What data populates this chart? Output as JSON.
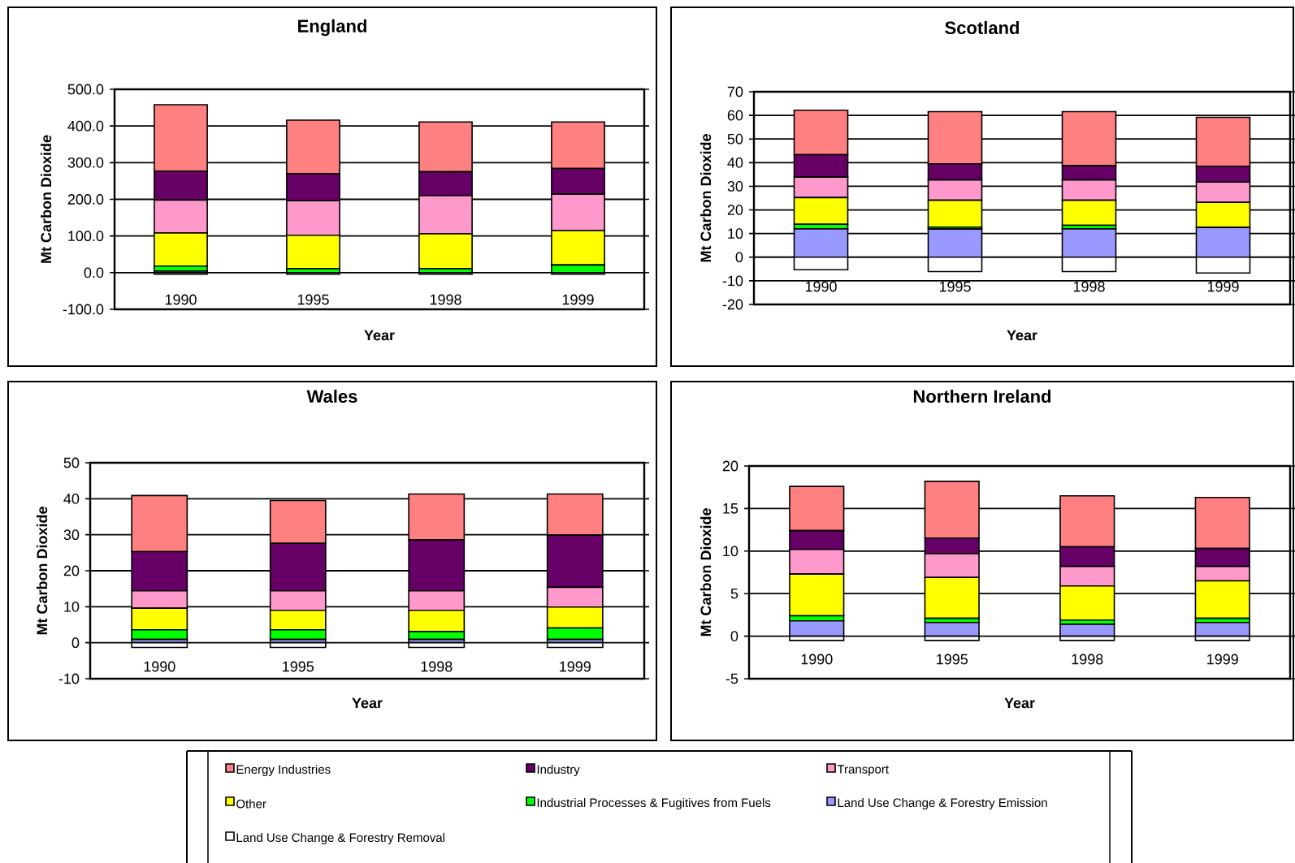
{
  "chart_data": [
    {
      "type": "bar",
      "title": "England",
      "xlabel": "Year",
      "ylabel": "Mt Carbon Dioxide",
      "categories": [
        "1990",
        "1995",
        "1998",
        "1999"
      ],
      "stacked": true,
      "grid": "y",
      "legend": "bottom",
      "ylim": [
        -100,
        500
      ],
      "yticks": [
        {
          "value": -100,
          "label": "-100.0"
        },
        {
          "value": 0,
          "label": "0.0"
        },
        {
          "value": 100,
          "label": "100.0"
        },
        {
          "value": 200,
          "label": "200.0"
        },
        {
          "value": 300,
          "label": "300.0"
        },
        {
          "value": 400,
          "label": "400.0"
        },
        {
          "value": 500,
          "label": "500.0"
        }
      ],
      "series": [
        {
          "name": "Land Use Change & Forestry Emission",
          "color": "#9999ff",
          "values": [
            4,
            null,
            null,
            null
          ]
        },
        {
          "name": "Industrial Processes & Fugitives from Fuels",
          "color": "#00ff00",
          "values": [
            14,
            11,
            11,
            21
          ]
        },
        {
          "name": "Other",
          "color": "#ffff00",
          "values": [
            90,
            91,
            95,
            94
          ]
        },
        {
          "name": "Transport",
          "color": "#ff99cc",
          "values": [
            90,
            94,
            104,
            99
          ]
        },
        {
          "name": "Industry",
          "color": "#660066",
          "values": [
            79,
            74,
            65,
            70
          ]
        },
        {
          "name": "Energy Industries",
          "color": "#ff8080",
          "values": [
            181,
            146,
            136,
            127
          ]
        },
        {
          "name": "Land Use Change & Forestry Removal",
          "color": "#ffffff",
          "values": [
            -4,
            -4,
            -4,
            -4
          ]
        }
      ]
    },
    {
      "type": "bar",
      "title": "Scotland",
      "xlabel": "Year",
      "ylabel": "Mt Carbon Dioxide",
      "categories": [
        "1990",
        "1995",
        "1998",
        "1999"
      ],
      "stacked": true,
      "grid": "y",
      "ylim": [
        -20,
        70
      ],
      "yticks": [
        -20,
        -10,
        0,
        10,
        20,
        30,
        40,
        50,
        60,
        70
      ],
      "series": [
        {
          "color": "#9999ff",
          "values": [
            12.0,
            11.9,
            12.0,
            12.6
          ]
        },
        {
          "color": "#00ff00",
          "values": [
            1.9,
            0.8,
            1.5,
            null
          ]
        },
        {
          "color": "#ffff00",
          "values": [
            11.3,
            11.4,
            10.6,
            10.6
          ]
        },
        {
          "color": "#ff99cc",
          "values": [
            8.7,
            8.6,
            8.6,
            8.6
          ]
        },
        {
          "color": "#660066",
          "values": [
            9.5,
            6.7,
            6.0,
            6.7
          ]
        },
        {
          "color": "#ff8080",
          "values": [
            18.8,
            22.2,
            22.9,
            20.7
          ]
        },
        {
          "color": "#ffffff",
          "values": [
            -5.3,
            -6.1,
            -6.1,
            -6.7
          ]
        }
      ]
    },
    {
      "type": "bar",
      "title": "Wales",
      "xlabel": "Year",
      "ylabel": "Mt Carbon Dioxide",
      "categories": [
        "1990",
        "1995",
        "1998",
        "1999"
      ],
      "stacked": true,
      "grid": "y",
      "ylim": [
        -10,
        50
      ],
      "yticks": [
        -10,
        0,
        10,
        20,
        30,
        40,
        50
      ],
      "series": [
        {
          "color": "#9999ff",
          "values": [
            0.9,
            0.9,
            0.9,
            0.9
          ]
        },
        {
          "color": "#00ff00",
          "values": [
            2.7,
            2.7,
            2.2,
            3.2
          ]
        },
        {
          "color": "#ffff00",
          "values": [
            6.0,
            5.4,
            5.9,
            5.8
          ]
        },
        {
          "color": "#ff99cc",
          "values": [
            4.8,
            5.4,
            5.4,
            5.5
          ]
        },
        {
          "color": "#660066",
          "values": [
            10.9,
            13.2,
            14.2,
            14.5
          ]
        },
        {
          "color": "#ff8080",
          "values": [
            15.6,
            11.9,
            12.7,
            11.4
          ]
        },
        {
          "color": "#ffffff",
          "values": [
            -1.3,
            -1.3,
            -1.3,
            -1.3
          ]
        }
      ]
    },
    {
      "type": "bar",
      "title": "Northern Ireland",
      "xlabel": "Year",
      "ylabel": "Mt Carbon Dioxide",
      "categories": [
        "1990",
        "1995",
        "1998",
        "1999"
      ],
      "stacked": true,
      "grid": "y",
      "ylim": [
        -5,
        20
      ],
      "yticks": [
        -5,
        0,
        5,
        10,
        15,
        20
      ],
      "series": [
        {
          "color": "#9999ff",
          "values": [
            1.8,
            1.6,
            1.4,
            1.6
          ]
        },
        {
          "color": "#00ff00",
          "values": [
            0.6,
            0.5,
            0.5,
            0.5
          ]
        },
        {
          "color": "#ffff00",
          "values": [
            4.9,
            4.8,
            4.0,
            4.4
          ]
        },
        {
          "color": "#ff99cc",
          "values": [
            2.9,
            2.8,
            2.3,
            1.7
          ]
        },
        {
          "color": "#660066",
          "values": [
            2.2,
            1.8,
            2.3,
            2.1
          ]
        },
        {
          "color": "#ff8080",
          "values": [
            5.2,
            6.7,
            6.0,
            6.0
          ]
        },
        {
          "color": "#ffffff",
          "values": [
            -0.5,
            -0.5,
            -0.5,
            -0.5
          ]
        }
      ]
    }
  ]
}
